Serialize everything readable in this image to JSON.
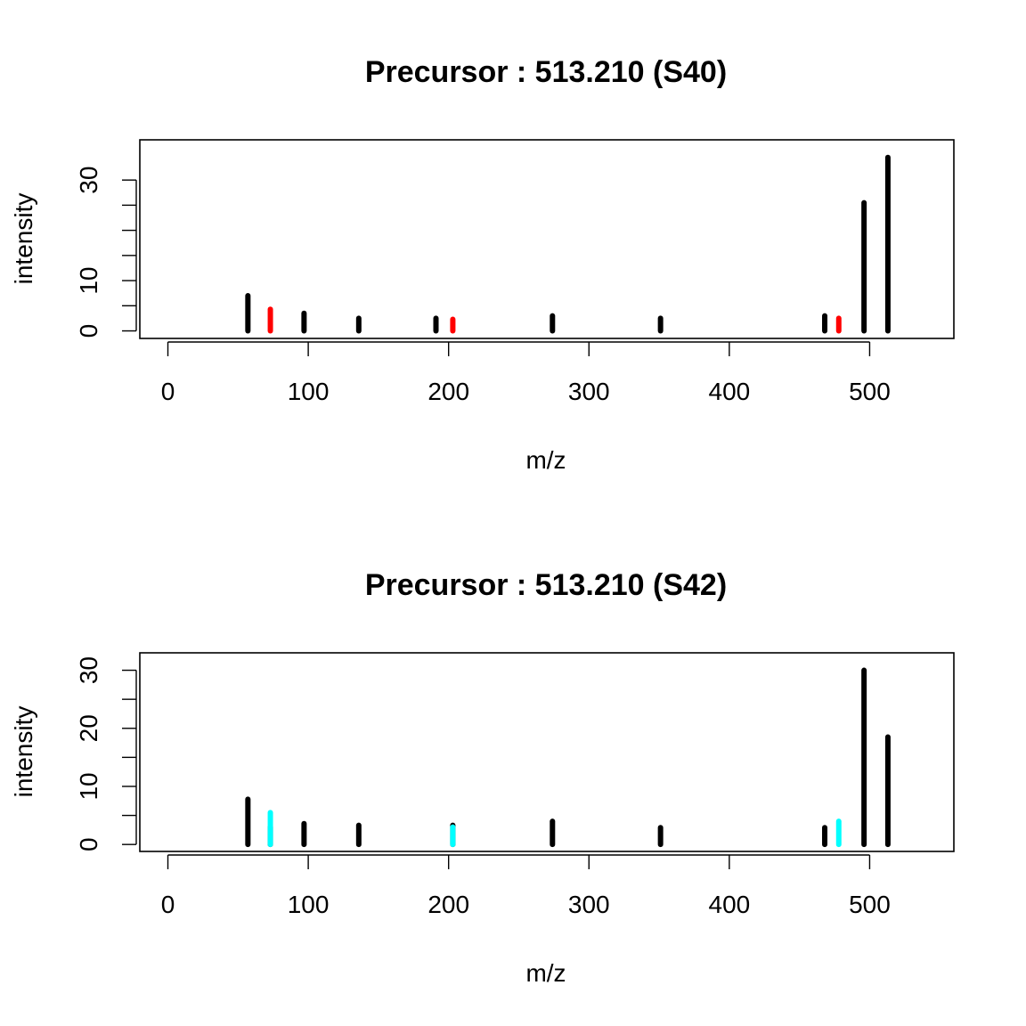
{
  "chart_data": [
    {
      "type": "bar",
      "title": "Precursor : 513.210 (S40)",
      "xlabel": "m/z",
      "ylabel": "intensity",
      "xlim": [
        -20,
        560
      ],
      "ylim": [
        -1.5,
        38
      ],
      "xticks": [
        0,
        100,
        200,
        300,
        400,
        500
      ],
      "xtick_labels": [
        "0",
        "100",
        "200",
        "300",
        "400",
        "500"
      ],
      "yticks": [
        0,
        5,
        10,
        15,
        20,
        25,
        30
      ],
      "ytick_labels": [
        "0",
        "",
        "10",
        "",
        "",
        "",
        "30"
      ],
      "grid": false,
      "highlight_color": "#ff0000",
      "default_color": "#000000",
      "peaks": [
        {
          "mz": 57,
          "intensity": 7.0,
          "highlight": false
        },
        {
          "mz": 73,
          "intensity": 4.3,
          "highlight": true
        },
        {
          "mz": 97,
          "intensity": 3.5,
          "highlight": false
        },
        {
          "mz": 136,
          "intensity": 2.5,
          "highlight": false
        },
        {
          "mz": 191,
          "intensity": 2.5,
          "highlight": false
        },
        {
          "mz": 203,
          "intensity": 2.3,
          "highlight": true
        },
        {
          "mz": 274,
          "intensity": 3.0,
          "highlight": false
        },
        {
          "mz": 351,
          "intensity": 2.5,
          "highlight": false
        },
        {
          "mz": 468,
          "intensity": 3.0,
          "highlight": false
        },
        {
          "mz": 478,
          "intensity": 2.5,
          "highlight": true
        },
        {
          "mz": 496,
          "intensity": 25.5,
          "highlight": false
        },
        {
          "mz": 513,
          "intensity": 34.5,
          "highlight": false
        }
      ]
    },
    {
      "type": "bar",
      "title": "Precursor : 513.210 (S42)",
      "xlabel": "m/z",
      "ylabel": "intensity",
      "xlim": [
        -20,
        560
      ],
      "ylim": [
        -1.2,
        33
      ],
      "xticks": [
        0,
        100,
        200,
        300,
        400,
        500
      ],
      "xtick_labels": [
        "0",
        "100",
        "200",
        "300",
        "400",
        "500"
      ],
      "yticks": [
        0,
        5,
        10,
        15,
        20,
        25,
        30
      ],
      "ytick_labels": [
        "0",
        "",
        "10",
        "",
        "20",
        "",
        "30"
      ],
      "grid": false,
      "highlight_color": "#00ffff",
      "default_color": "#000000",
      "peaks": [
        {
          "mz": 57,
          "intensity": 7.8,
          "highlight": false
        },
        {
          "mz": 73,
          "intensity": 3.0,
          "highlight": false
        },
        {
          "mz": 73,
          "intensity": 5.5,
          "highlight": true
        },
        {
          "mz": 97,
          "intensity": 3.6,
          "highlight": false
        },
        {
          "mz": 136,
          "intensity": 3.3,
          "highlight": false
        },
        {
          "mz": 203,
          "intensity": 3.3,
          "highlight": false
        },
        {
          "mz": 203,
          "intensity": 3.0,
          "highlight": true
        },
        {
          "mz": 274,
          "intensity": 4.0,
          "highlight": false
        },
        {
          "mz": 351,
          "intensity": 2.9,
          "highlight": false
        },
        {
          "mz": 468,
          "intensity": 2.9,
          "highlight": false
        },
        {
          "mz": 478,
          "intensity": 4.0,
          "highlight": true
        },
        {
          "mz": 496,
          "intensity": 30.0,
          "highlight": false
        },
        {
          "mz": 513,
          "intensity": 18.5,
          "highlight": false
        }
      ]
    }
  ]
}
